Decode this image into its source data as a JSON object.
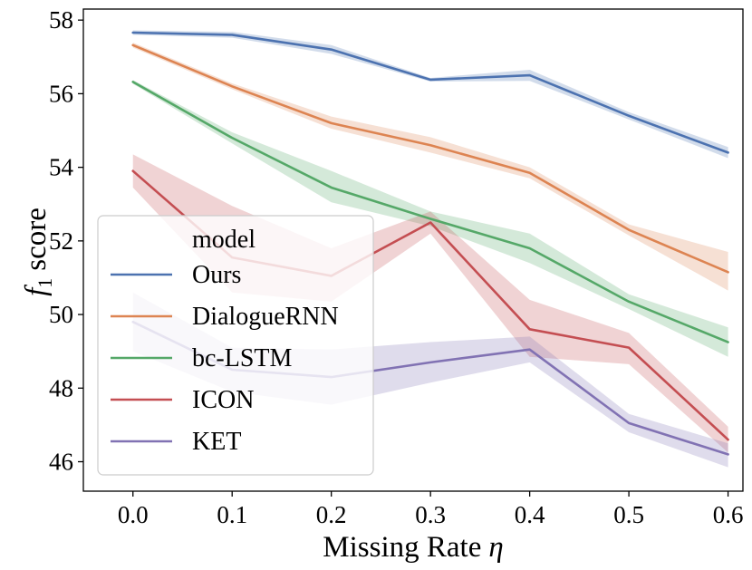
{
  "chart_data": {
    "type": "line",
    "title": "",
    "xlabel": "Missing Rate",
    "xlabel_symbol": "η",
    "ylabel": "score",
    "ylabel_symbol": "f",
    "ylabel_subscript": "1",
    "x": [
      0.0,
      0.1,
      0.2,
      0.3,
      0.4,
      0.5,
      0.6
    ],
    "x_tick_labels": [
      "0.0",
      "0.1",
      "0.2",
      "0.3",
      "0.4",
      "0.5",
      "0.6"
    ],
    "y_ticks": [
      46,
      48,
      50,
      52,
      54,
      56,
      58
    ],
    "y_tick_labels": [
      "46",
      "48",
      "50",
      "52",
      "54",
      "56",
      "58"
    ],
    "xlim": [
      -0.05,
      0.615
    ],
    "ylim": [
      45.2,
      58.3
    ],
    "grid": false,
    "legend": {
      "title": "model",
      "placement": "lower-left"
    },
    "series": [
      {
        "name": "Ours",
        "color": "#4c72b0",
        "values": [
          57.66,
          57.6,
          57.2,
          56.38,
          56.5,
          55.4,
          54.4
        ],
        "lower": [
          57.6,
          57.52,
          57.08,
          56.33,
          56.35,
          55.3,
          54.25
        ],
        "upper": [
          57.72,
          57.68,
          57.32,
          56.43,
          56.65,
          55.5,
          54.55
        ]
      },
      {
        "name": "DialogueRNN",
        "color": "#dd8452",
        "values": [
          57.32,
          56.2,
          55.2,
          54.6,
          53.85,
          52.3,
          51.15
        ],
        "lower": [
          57.25,
          56.12,
          55.05,
          54.4,
          53.7,
          52.15,
          50.65
        ],
        "upper": [
          57.39,
          56.28,
          55.38,
          54.82,
          54.0,
          52.45,
          51.7
        ]
      },
      {
        "name": "bc-LSTM",
        "color": "#55a868",
        "values": [
          56.32,
          54.8,
          53.45,
          52.6,
          51.8,
          50.35,
          49.25
        ],
        "lower": [
          56.27,
          54.65,
          53.05,
          52.4,
          51.4,
          50.15,
          48.85
        ],
        "upper": [
          56.37,
          54.95,
          53.9,
          52.8,
          52.2,
          50.55,
          49.65
        ]
      },
      {
        "name": "ICON",
        "color": "#c44e52",
        "values": [
          53.9,
          51.55,
          51.05,
          52.5,
          49.6,
          49.1,
          46.6
        ],
        "lower": [
          53.45,
          50.6,
          50.35,
          52.2,
          48.85,
          48.65,
          46.25
        ],
        "upper": [
          54.35,
          52.95,
          51.8,
          52.8,
          50.4,
          49.5,
          46.95
        ]
      },
      {
        "name": "KET",
        "color": "#8172b3",
        "values": [
          49.8,
          48.5,
          48.3,
          48.7,
          49.05,
          47.05,
          46.2
        ],
        "lower": [
          49.0,
          47.9,
          47.55,
          48.15,
          48.7,
          46.8,
          45.85
        ],
        "upper": [
          50.6,
          49.1,
          49.05,
          49.25,
          49.4,
          47.3,
          46.5
        ]
      }
    ]
  }
}
